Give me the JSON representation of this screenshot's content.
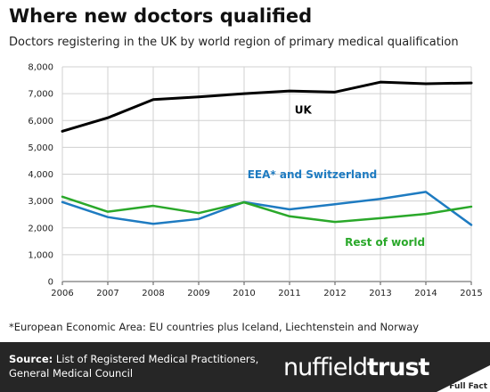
{
  "title": "Where new doctors qualified",
  "subtitle": "Doctors registering in the UK by world region of primary medical qualification",
  "footnote": "*European Economic Area: EU countries plus Iceland, Liechtenstein and Norway",
  "footer": {
    "source_label": "Source:",
    "source_text_line1": "List of Registered Medical Practitioners,",
    "source_text_line2": "General Medical Council",
    "logo_part1": "nuffield",
    "logo_part2": "trust",
    "fullfact_text": "Full Fact"
  },
  "colors": {
    "uk": "#000000",
    "eea": "#1e7bc1",
    "rest": "#2aa82a",
    "footer_bg": "#262626"
  },
  "chart_data": {
    "type": "line",
    "title": "Where new doctors qualified",
    "subtitle": "Doctors registering in the UK by world region of primary medical qualification",
    "xlabel": "",
    "ylabel": "",
    "x": [
      2006,
      2007,
      2008,
      2009,
      2010,
      2011,
      2012,
      2013,
      2014,
      2015
    ],
    "ylim": [
      0,
      8000
    ],
    "yticks": [
      "0",
      "1,000",
      "2,000",
      "3,000",
      "4,000",
      "5,000",
      "6,000",
      "7,000",
      "8,000"
    ],
    "ytick_values": [
      0,
      1000,
      2000,
      3000,
      4000,
      5000,
      6000,
      7000,
      8000
    ],
    "grid": true,
    "series": [
      {
        "name": "UK",
        "key": "uk",
        "values": [
          5600,
          6100,
          6780,
          6880,
          7000,
          7100,
          7060,
          7430,
          7370,
          7400
        ]
      },
      {
        "name": "EEA* and Switzerland",
        "key": "eea",
        "values": [
          2960,
          2400,
          2150,
          2330,
          2960,
          2690,
          2880,
          3080,
          3340,
          2110
        ]
      },
      {
        "name": "Rest of world",
        "key": "rest",
        "values": [
          3160,
          2600,
          2820,
          2550,
          2950,
          2430,
          2220,
          2360,
          2520,
          2790
        ]
      }
    ]
  }
}
